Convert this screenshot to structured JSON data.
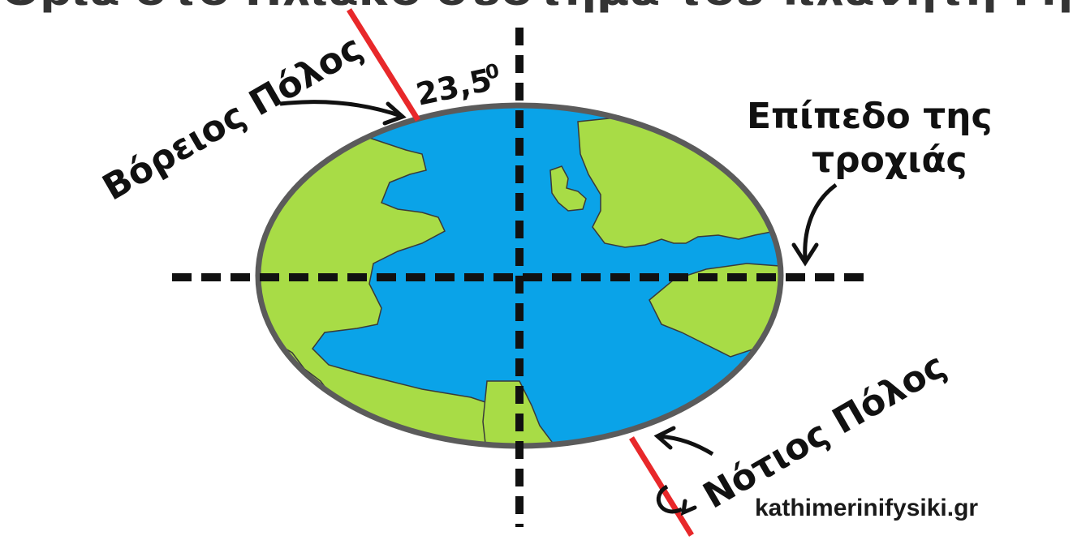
{
  "labels": {
    "top_cut_text": "Όρια στο Ηλιακό σύστημα του πλανήτη Γη",
    "north_pole": "Βόρειος Πόλος",
    "south_pole": "Νότιος Πόλος",
    "angle": "23,5",
    "angle_unit": "0",
    "orbit_plane_line1": "Επίπεδο της",
    "orbit_plane_line2": "τροχιάς",
    "credit": "kathimerinifysiki.gr"
  },
  "axis_tilt_degrees": 23.5,
  "colors": {
    "ocean": "#0aa3e8",
    "land": "#a8dc46",
    "outline": "#5b5b5b",
    "tilt_axis": "#e8282a",
    "dashed_lines": "#111111",
    "text": "#111111"
  }
}
